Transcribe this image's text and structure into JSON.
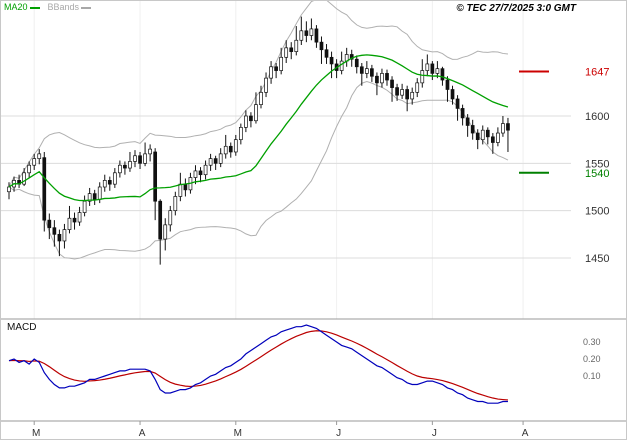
{
  "header": {
    "legend": [
      {
        "label": "MA20",
        "color": "#00A000"
      },
      {
        "label": "BBands",
        "color": "#A8A8A8"
      }
    ],
    "copyright": "© TEC 27/7/2025 3:0 GMT"
  },
  "chart_data": {
    "type": "candlestick",
    "title": "",
    "x_axis": {
      "tick_labels": [
        "M",
        "A",
        "M",
        "J",
        "J",
        "A"
      ],
      "tick_indices": [
        5,
        26,
        45,
        65,
        84,
        102
      ]
    },
    "price_axis": {
      "gridline_values": [
        1600,
        1550,
        1500,
        1450
      ],
      "labels": [
        {
          "text": "1647",
          "value": 1647,
          "color": "#CC0000"
        },
        {
          "text": "1600",
          "value": 1600,
          "color": "#333333"
        },
        {
          "text": "1550",
          "value": 1550,
          "color": "#333333"
        },
        {
          "text": "1540",
          "value": 1540,
          "color": "#008000"
        },
        {
          "text": "1500",
          "value": 1500,
          "color": "#333333"
        },
        {
          "text": "1450",
          "value": 1450,
          "color": "#333333"
        }
      ],
      "range": [
        1430,
        1718
      ]
    },
    "levels": [
      {
        "value": 1647,
        "color": "#CC0000",
        "role": "resistance"
      },
      {
        "value": 1540,
        "color": "#008000",
        "role": "support"
      }
    ],
    "indicators": {
      "ma20": {
        "period": 20,
        "color": "#00A000"
      },
      "bbands": {
        "period": 20,
        "stddev": 2,
        "color": "#B0B0B0"
      }
    },
    "candles_ohlc": [
      [
        1520,
        1530,
        1512,
        1525
      ],
      [
        1525,
        1536,
        1520,
        1532
      ],
      [
        1532,
        1538,
        1524,
        1528
      ],
      [
        1528,
        1545,
        1526,
        1540
      ],
      [
        1540,
        1552,
        1535,
        1548
      ],
      [
        1548,
        1560,
        1543,
        1555
      ],
      [
        1555,
        1565,
        1549,
        1560
      ],
      [
        1556,
        1562,
        1478,
        1490
      ],
      [
        1490,
        1497,
        1470,
        1482
      ],
      [
        1482,
        1490,
        1462,
        1475
      ],
      [
        1475,
        1480,
        1452,
        1468
      ],
      [
        1468,
        1486,
        1460,
        1480
      ],
      [
        1480,
        1505,
        1476,
        1492
      ],
      [
        1492,
        1498,
        1480,
        1488
      ],
      [
        1488,
        1504,
        1484,
        1498
      ],
      [
        1498,
        1516,
        1494,
        1510
      ],
      [
        1510,
        1524,
        1505,
        1518
      ],
      [
        1518,
        1522,
        1506,
        1512
      ],
      [
        1512,
        1530,
        1508,
        1525
      ],
      [
        1525,
        1538,
        1520,
        1532
      ],
      [
        1532,
        1536,
        1521,
        1528
      ],
      [
        1528,
        1545,
        1524,
        1540
      ],
      [
        1540,
        1553,
        1535,
        1548
      ],
      [
        1548,
        1552,
        1538,
        1545
      ],
      [
        1545,
        1562,
        1541,
        1552
      ],
      [
        1552,
        1564,
        1546,
        1558
      ],
      [
        1558,
        1562,
        1544,
        1550
      ],
      [
        1550,
        1572,
        1547,
        1560
      ],
      [
        1560,
        1570,
        1552,
        1565
      ],
      [
        1562,
        1566,
        1490,
        1510
      ],
      [
        1510,
        1512,
        1443,
        1470
      ],
      [
        1470,
        1492,
        1458,
        1485
      ],
      [
        1485,
        1505,
        1478,
        1500
      ],
      [
        1500,
        1520,
        1495,
        1515
      ],
      [
        1515,
        1540,
        1510,
        1528
      ],
      [
        1528,
        1534,
        1515,
        1522
      ],
      [
        1522,
        1540,
        1518,
        1535
      ],
      [
        1535,
        1548,
        1528,
        1542
      ],
      [
        1542,
        1546,
        1530,
        1538
      ],
      [
        1538,
        1553,
        1533,
        1548
      ],
      [
        1548,
        1560,
        1542,
        1555
      ],
      [
        1555,
        1558,
        1543,
        1550
      ],
      [
        1550,
        1566,
        1546,
        1560
      ],
      [
        1560,
        1580,
        1555,
        1568
      ],
      [
        1568,
        1572,
        1556,
        1562
      ],
      [
        1562,
        1580,
        1558,
        1575
      ],
      [
        1575,
        1592,
        1570,
        1588
      ],
      [
        1588,
        1606,
        1583,
        1600
      ],
      [
        1600,
        1604,
        1588,
        1595
      ],
      [
        1595,
        1625,
        1592,
        1612
      ],
      [
        1612,
        1632,
        1608,
        1625
      ],
      [
        1625,
        1646,
        1620,
        1640
      ],
      [
        1640,
        1658,
        1634,
        1652
      ],
      [
        1652,
        1656,
        1640,
        1648
      ],
      [
        1648,
        1672,
        1644,
        1662
      ],
      [
        1662,
        1680,
        1656,
        1672
      ],
      [
        1672,
        1678,
        1660,
        1668
      ],
      [
        1668,
        1695,
        1664,
        1680
      ],
      [
        1680,
        1705,
        1675,
        1690
      ],
      [
        1690,
        1700,
        1678,
        1685
      ],
      [
        1685,
        1703,
        1680,
        1692
      ],
      [
        1692,
        1696,
        1672,
        1678
      ],
      [
        1678,
        1684,
        1655,
        1670
      ],
      [
        1670,
        1676,
        1655,
        1662
      ],
      [
        1662,
        1668,
        1640,
        1655
      ],
      [
        1655,
        1660,
        1640,
        1648
      ],
      [
        1648,
        1668,
        1644,
        1658
      ],
      [
        1658,
        1672,
        1652,
        1665
      ],
      [
        1665,
        1670,
        1652,
        1660
      ],
      [
        1660,
        1664,
        1645,
        1652
      ],
      [
        1652,
        1656,
        1632,
        1645
      ],
      [
        1645,
        1658,
        1640,
        1650
      ],
      [
        1650,
        1654,
        1636,
        1642
      ],
      [
        1642,
        1646,
        1622,
        1635
      ],
      [
        1635,
        1650,
        1630,
        1645
      ],
      [
        1645,
        1649,
        1632,
        1638
      ],
      [
        1638,
        1642,
        1615,
        1630
      ],
      [
        1630,
        1634,
        1616,
        1622
      ],
      [
        1622,
        1634,
        1618,
        1628
      ],
      [
        1628,
        1632,
        1605,
        1618
      ],
      [
        1618,
        1630,
        1612,
        1625
      ],
      [
        1625,
        1640,
        1620,
        1635
      ],
      [
        1635,
        1660,
        1630,
        1648
      ],
      [
        1648,
        1665,
        1642,
        1655
      ],
      [
        1655,
        1658,
        1638,
        1645
      ],
      [
        1645,
        1658,
        1640,
        1650
      ],
      [
        1650,
        1652,
        1632,
        1638
      ],
      [
        1638,
        1642,
        1615,
        1628
      ],
      [
        1628,
        1632,
        1612,
        1618
      ],
      [
        1618,
        1622,
        1595,
        1608
      ],
      [
        1608,
        1612,
        1590,
        1598
      ],
      [
        1598,
        1602,
        1578,
        1590
      ],
      [
        1590,
        1596,
        1575,
        1582
      ],
      [
        1582,
        1586,
        1565,
        1575
      ],
      [
        1575,
        1590,
        1570,
        1585
      ],
      [
        1585,
        1588,
        1570,
        1578
      ],
      [
        1578,
        1582,
        1560,
        1572
      ],
      [
        1572,
        1588,
        1568,
        1582
      ],
      [
        1582,
        1600,
        1578,
        1592
      ],
      [
        1592,
        1598,
        1562,
        1585
      ]
    ],
    "macd_panel": {
      "label": "MACD",
      "line_color": "#0000BB",
      "signal_color": "#BB0000",
      "signal_period": 9,
      "scale_labels": [
        {
          "text": "0.30",
          "value": 0.3
        },
        {
          "text": "0.20",
          "value": 0.2
        },
        {
          "text": "0.10",
          "value": 0.1
        }
      ],
      "macd_values": [
        0.19,
        0.2,
        0.18,
        0.19,
        0.17,
        0.2,
        0.18,
        0.12,
        0.08,
        0.05,
        0.03,
        0.03,
        0.04,
        0.04,
        0.05,
        0.06,
        0.08,
        0.08,
        0.09,
        0.1,
        0.11,
        0.12,
        0.13,
        0.13,
        0.14,
        0.14,
        0.14,
        0.14,
        0.13,
        0.08,
        0.02,
        0.0,
        0.0,
        0.01,
        0.02,
        0.02,
        0.03,
        0.05,
        0.06,
        0.08,
        0.1,
        0.11,
        0.13,
        0.15,
        0.16,
        0.18,
        0.2,
        0.23,
        0.25,
        0.27,
        0.29,
        0.31,
        0.33,
        0.34,
        0.36,
        0.37,
        0.38,
        0.39,
        0.39,
        0.4,
        0.39,
        0.38,
        0.36,
        0.34,
        0.32,
        0.3,
        0.28,
        0.27,
        0.26,
        0.24,
        0.22,
        0.2,
        0.18,
        0.16,
        0.15,
        0.13,
        0.11,
        0.09,
        0.08,
        0.06,
        0.05,
        0.05,
        0.06,
        0.07,
        0.07,
        0.06,
        0.05,
        0.03,
        0.02,
        0.0,
        -0.01,
        -0.03,
        -0.04,
        -0.05,
        -0.05,
        -0.06,
        -0.06,
        -0.06,
        -0.05,
        -0.05
      ],
      "range": [
        -0.1,
        0.45
      ]
    }
  }
}
